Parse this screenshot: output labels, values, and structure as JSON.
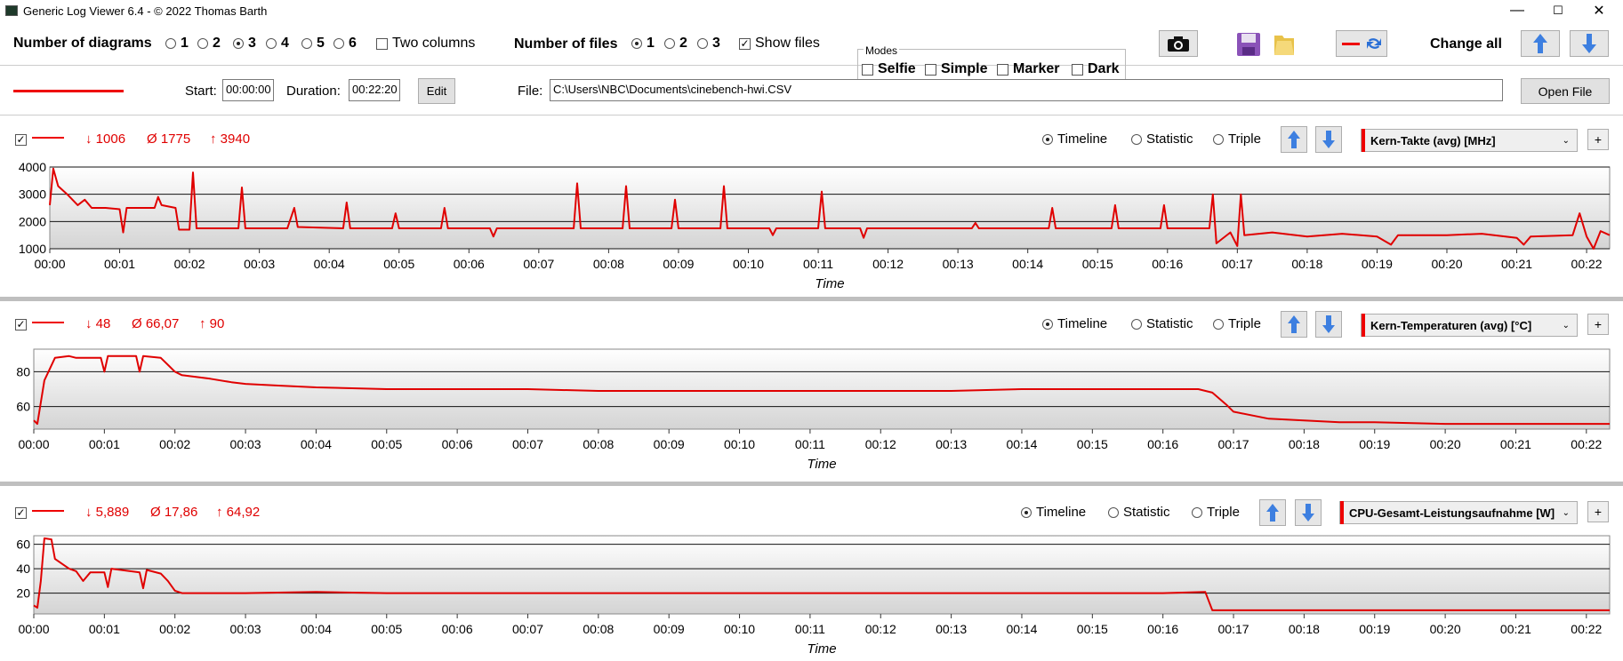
{
  "window": {
    "title": "Generic Log Viewer 6.4 - © 2022 Thomas Barth",
    "minimize": "—",
    "maximize": "☐",
    "close": "✕"
  },
  "toolbar": {
    "num_diagrams_label": "Number of diagrams",
    "diagram_options": [
      "1",
      "2",
      "3",
      "4",
      "5",
      "6"
    ],
    "diagram_selected": "3",
    "two_columns": "Two columns",
    "num_files_label": "Number of files",
    "file_options": [
      "1",
      "2",
      "3"
    ],
    "file_selected": "1",
    "show_files": "Show files",
    "modes_label": "Modes",
    "modes": [
      "Selfie",
      "Simple",
      "Marker",
      "Dark"
    ],
    "change_all": "Change all"
  },
  "file_row": {
    "start_label": "Start:",
    "start_value": "00:00:00",
    "duration_label": "Duration:",
    "duration_value": "00:22:20",
    "edit": "Edit",
    "file_label": "File:",
    "file_path": "C:\\Users\\NBC\\Documents\\cinebench-hwi.CSV",
    "open_file": "Open File"
  },
  "colors": {
    "series": "#e00000",
    "accent_blue": "#3d7fe0"
  },
  "panels": [
    {
      "min": "↓ 1006",
      "avg": "Ø 1775",
      "max": "↑ 3940",
      "views": [
        "Timeline",
        "Statistic",
        "Triple"
      ],
      "view_selected": "Timeline",
      "sensor": "Kern-Takte (avg) [MHz]",
      "plus": "+"
    },
    {
      "min": "↓ 48",
      "avg": "Ø 66,07",
      "max": "↑ 90",
      "views": [
        "Timeline",
        "Statistic",
        "Triple"
      ],
      "view_selected": "Timeline",
      "sensor": "Kern-Temperaturen (avg) [°C]",
      "plus": "+"
    },
    {
      "min": "↓ 5,889",
      "avg": "Ø 17,86",
      "max": "↑ 64,92",
      "views": [
        "Timeline",
        "Statistic",
        "Triple"
      ],
      "view_selected": "Timeline",
      "sensor": "CPU-Gesamt-Leistungsaufnahme [W]",
      "plus": "+"
    }
  ],
  "chart_data": [
    {
      "type": "line",
      "xlabel": "Time",
      "xticks": [
        "00:00",
        "00:01",
        "00:02",
        "00:03",
        "00:04",
        "00:05",
        "00:06",
        "00:07",
        "00:08",
        "00:09",
        "00:10",
        "00:11",
        "00:12",
        "00:13",
        "00:14",
        "00:15",
        "00:16",
        "00:17",
        "00:18",
        "00:19",
        "00:20",
        "00:21",
        "00:22"
      ],
      "xlim": [
        0,
        22.33
      ],
      "yticks": [
        "1000",
        "2000",
        "3000",
        "4000"
      ],
      "ylim": [
        1000,
        4000
      ],
      "grid": true,
      "series": [
        {
          "points": [
            [
              0,
              2600
            ],
            [
              0.05,
              3940
            ],
            [
              0.12,
              3300
            ],
            [
              0.25,
              3000
            ],
            [
              0.4,
              2600
            ],
            [
              0.5,
              2800
            ],
            [
              0.6,
              2500
            ],
            [
              0.8,
              2500
            ],
            [
              1,
              2450
            ],
            [
              1.05,
              1600
            ],
            [
              1.1,
              2500
            ],
            [
              1.5,
              2500
            ],
            [
              1.55,
              2900
            ],
            [
              1.6,
              2600
            ],
            [
              1.8,
              2500
            ],
            [
              1.85,
              1700
            ],
            [
              2,
              1700
            ],
            [
              2.05,
              3800
            ],
            [
              2.1,
              1750
            ],
            [
              2.7,
              1750
            ],
            [
              2.75,
              3250
            ],
            [
              2.8,
              1750
            ],
            [
              3.4,
              1750
            ],
            [
              3.5,
              2500
            ],
            [
              3.55,
              1800
            ],
            [
              4.2,
              1750
            ],
            [
              4.25,
              2700
            ],
            [
              4.3,
              1750
            ],
            [
              4.9,
              1750
            ],
            [
              4.95,
              2300
            ],
            [
              5,
              1750
            ],
            [
              5.6,
              1750
            ],
            [
              5.65,
              2500
            ],
            [
              5.7,
              1750
            ],
            [
              6.3,
              1750
            ],
            [
              6.35,
              1450
            ],
            [
              6.4,
              1750
            ],
            [
              7.5,
              1750
            ],
            [
              7.55,
              3400
            ],
            [
              7.6,
              1750
            ],
            [
              8.2,
              1750
            ],
            [
              8.25,
              3300
            ],
            [
              8.3,
              1750
            ],
            [
              8.9,
              1750
            ],
            [
              8.95,
              2800
            ],
            [
              9,
              1750
            ],
            [
              9.6,
              1750
            ],
            [
              9.65,
              3300
            ],
            [
              9.7,
              1750
            ],
            [
              10.3,
              1750
            ],
            [
              10.35,
              1500
            ],
            [
              10.4,
              1750
            ],
            [
              11,
              1750
            ],
            [
              11.05,
              3100
            ],
            [
              11.1,
              1750
            ],
            [
              11.6,
              1750
            ],
            [
              11.65,
              1400
            ],
            [
              11.7,
              1750
            ],
            [
              13.2,
              1750
            ],
            [
              13.25,
              1950
            ],
            [
              13.3,
              1750
            ],
            [
              14.3,
              1750
            ],
            [
              14.35,
              2500
            ],
            [
              14.4,
              1750
            ],
            [
              15.2,
              1750
            ],
            [
              15.25,
              2600
            ],
            [
              15.3,
              1750
            ],
            [
              15.9,
              1750
            ],
            [
              15.95,
              2600
            ],
            [
              16,
              1750
            ],
            [
              16.6,
              1750
            ],
            [
              16.65,
              3000
            ],
            [
              16.7,
              1200
            ],
            [
              16.9,
              1600
            ],
            [
              17,
              1100
            ],
            [
              17.05,
              3000
            ],
            [
              17.1,
              1500
            ],
            [
              17.5,
              1600
            ],
            [
              18,
              1450
            ],
            [
              18.5,
              1550
            ],
            [
              19,
              1450
            ],
            [
              19.2,
              1150
            ],
            [
              19.3,
              1500
            ],
            [
              20,
              1500
            ],
            [
              20.5,
              1550
            ],
            [
              21,
              1400
            ],
            [
              21.1,
              1150
            ],
            [
              21.2,
              1450
            ],
            [
              21.8,
              1500
            ],
            [
              21.9,
              2300
            ],
            [
              22,
              1450
            ],
            [
              22.1,
              1000
            ],
            [
              22.2,
              1650
            ],
            [
              22.33,
              1500
            ]
          ]
        }
      ]
    },
    {
      "type": "line",
      "xlabel": "Time",
      "xticks": [
        "00:00",
        "00:01",
        "00:02",
        "00:03",
        "00:04",
        "00:05",
        "00:06",
        "00:07",
        "00:08",
        "00:09",
        "00:10",
        "00:11",
        "00:12",
        "00:13",
        "00:14",
        "00:15",
        "00:16",
        "00:17",
        "00:18",
        "00:19",
        "00:20",
        "00:21",
        "00:22"
      ],
      "xlim": [
        0,
        22.33
      ],
      "yticks": [
        "60",
        "80"
      ],
      "ylim": [
        47,
        93
      ],
      "grid": true,
      "series": [
        {
          "points": [
            [
              0,
              52
            ],
            [
              0.05,
              50
            ],
            [
              0.15,
              75
            ],
            [
              0.3,
              88
            ],
            [
              0.5,
              89
            ],
            [
              0.6,
              88
            ],
            [
              0.95,
              88
            ],
            [
              1,
              80
            ],
            [
              1.05,
              89
            ],
            [
              1.45,
              89
            ],
            [
              1.5,
              80
            ],
            [
              1.55,
              89
            ],
            [
              1.8,
              88
            ],
            [
              1.9,
              84
            ],
            [
              2,
              80
            ],
            [
              2.1,
              78
            ],
            [
              2.5,
              76
            ],
            [
              2.8,
              74
            ],
            [
              3,
              73
            ],
            [
              3.5,
              72
            ],
            [
              4,
              71
            ],
            [
              5,
              70
            ],
            [
              6,
              70
            ],
            [
              7,
              70
            ],
            [
              8,
              69
            ],
            [
              9,
              69
            ],
            [
              10,
              69
            ],
            [
              11,
              69
            ],
            [
              12,
              69
            ],
            [
              13,
              69
            ],
            [
              14,
              70
            ],
            [
              15,
              70
            ],
            [
              16,
              70
            ],
            [
              16.5,
              70
            ],
            [
              16.7,
              68
            ],
            [
              16.9,
              61
            ],
            [
              17,
              57
            ],
            [
              17.5,
              53
            ],
            [
              18,
              52
            ],
            [
              18.5,
              51
            ],
            [
              19,
              51
            ],
            [
              20,
              50
            ],
            [
              21,
              50
            ],
            [
              22,
              50
            ],
            [
              22.33,
              50
            ]
          ]
        }
      ]
    },
    {
      "type": "line",
      "xlabel": "Time",
      "xticks": [
        "00:00",
        "00:01",
        "00:02",
        "00:03",
        "00:04",
        "00:05",
        "00:06",
        "00:07",
        "00:08",
        "00:09",
        "00:10",
        "00:11",
        "00:12",
        "00:13",
        "00:14",
        "00:15",
        "00:16",
        "00:17",
        "00:18",
        "00:19",
        "00:20",
        "00:21",
        "00:22"
      ],
      "xlim": [
        0,
        22.33
      ],
      "yticks": [
        "20",
        "40",
        "60"
      ],
      "ylim": [
        3,
        67
      ],
      "grid": true,
      "series": [
        {
          "points": [
            [
              0,
              10
            ],
            [
              0.05,
              8
            ],
            [
              0.1,
              30
            ],
            [
              0.15,
              64.9
            ],
            [
              0.25,
              64
            ],
            [
              0.3,
              48
            ],
            [
              0.5,
              40
            ],
            [
              0.6,
              38
            ],
            [
              0.7,
              30
            ],
            [
              0.8,
              37
            ],
            [
              1,
              37
            ],
            [
              1.05,
              25
            ],
            [
              1.1,
              40
            ],
            [
              1.5,
              37
            ],
            [
              1.55,
              24
            ],
            [
              1.6,
              39
            ],
            [
              1.8,
              36
            ],
            [
              1.9,
              30
            ],
            [
              2,
              22
            ],
            [
              2.1,
              20
            ],
            [
              3,
              20
            ],
            [
              4,
              21
            ],
            [
              5,
              20
            ],
            [
              6,
              20
            ],
            [
              7,
              20
            ],
            [
              8,
              20
            ],
            [
              9,
              20
            ],
            [
              10,
              20
            ],
            [
              11,
              20
            ],
            [
              12,
              20
            ],
            [
              13,
              20
            ],
            [
              14,
              20
            ],
            [
              15,
              20
            ],
            [
              16,
              20
            ],
            [
              16.6,
              21
            ],
            [
              16.7,
              6
            ],
            [
              17,
              6
            ],
            [
              18,
              6
            ],
            [
              19,
              6
            ],
            [
              20,
              6
            ],
            [
              21,
              6
            ],
            [
              22,
              6
            ],
            [
              22.33,
              6
            ]
          ]
        }
      ]
    }
  ]
}
